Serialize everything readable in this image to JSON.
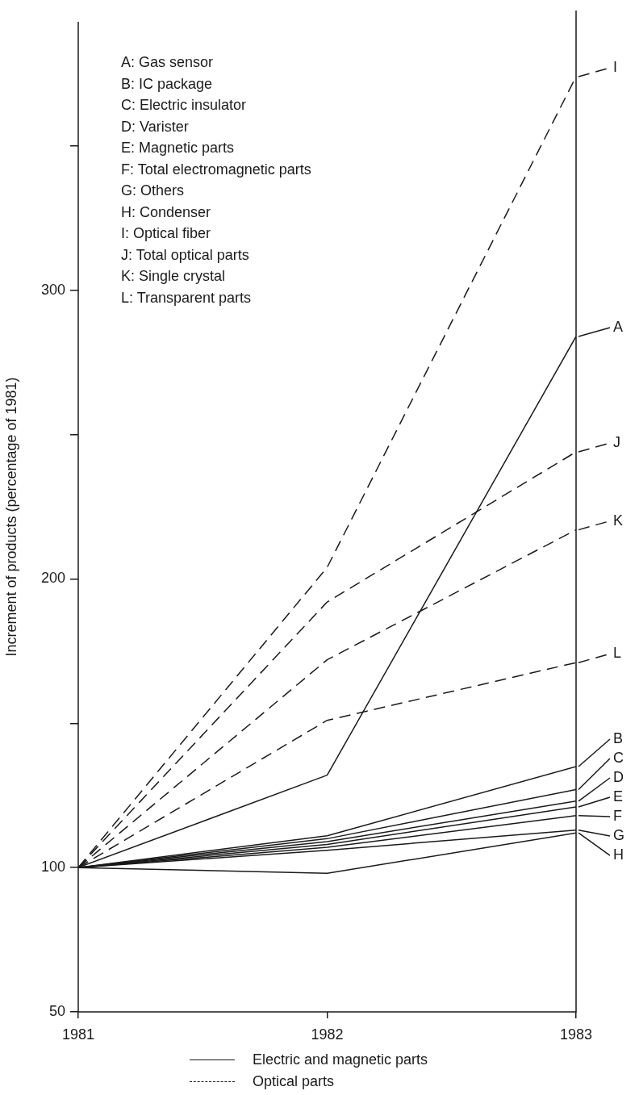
{
  "chart_data": {
    "type": "line",
    "ylabel": "Increment of products (percentage of 1981)",
    "x": [
      1981,
      1982,
      1983
    ],
    "xlim": [
      1981,
      1983
    ],
    "xticks": [
      1981,
      1982,
      1983
    ],
    "ylim": [
      50,
      393
    ],
    "yticks": [
      50,
      100,
      {
        "value": 150,
        "label": null
      },
      200,
      {
        "value": 250,
        "label": null
      },
      300,
      {
        "value": 350,
        "label": null
      }
    ],
    "grid": false,
    "legend": "right",
    "marker": "none",
    "series": [
      {
        "name": "A",
        "color": "#1a1a1a",
        "line_style": "solid",
        "values": [
          100,
          132,
          284
        ]
      },
      {
        "name": "B",
        "color": "#1a1a1a",
        "line_style": "solid",
        "values": [
          100,
          111,
          135
        ]
      },
      {
        "name": "C",
        "color": "#1a1a1a",
        "line_style": "solid",
        "values": [
          100,
          110,
          127
        ]
      },
      {
        "name": "D",
        "color": "#1a1a1a",
        "line_style": "solid",
        "values": [
          100,
          109,
          123
        ]
      },
      {
        "name": "E",
        "color": "#1a1a1a",
        "line_style": "solid",
        "values": [
          100,
          108,
          121
        ]
      },
      {
        "name": "F",
        "color": "#1a1a1a",
        "line_style": "solid",
        "values": [
          100,
          107,
          118
        ]
      },
      {
        "name": "G",
        "color": "#1a1a1a",
        "line_style": "solid",
        "values": [
          100,
          106,
          113
        ]
      },
      {
        "name": "H",
        "color": "#1a1a1a",
        "line_style": "solid",
        "values": [
          100,
          98,
          112
        ]
      },
      {
        "name": "I",
        "color": "#1a1a1a",
        "line_style": "dashed",
        "values": [
          100,
          204,
          374
        ]
      },
      {
        "name": "J",
        "color": "#1a1a1a",
        "line_style": "dashed",
        "values": [
          100,
          192,
          244
        ]
      },
      {
        "name": "K",
        "color": "#1a1a1a",
        "line_style": "dashed",
        "values": [
          100,
          172,
          217
        ]
      },
      {
        "name": "L",
        "color": "#1a1a1a",
        "line_style": "dashed",
        "values": [
          100,
          151,
          171
        ]
      }
    ],
    "annotations": [
      "A: Gas sensor",
      "B: IC package",
      "C: Electric insulator",
      "D: Varister",
      "E: Magnetic parts",
      "F: Total electromagnetic parts",
      "G: Others",
      "H: Condenser",
      "I: Optical fiber",
      "J: Total optical parts",
      "K: Single crystal",
      "L: Transparent parts",
      "Electric and magnetic parts",
      "Optical parts"
    ]
  }
}
